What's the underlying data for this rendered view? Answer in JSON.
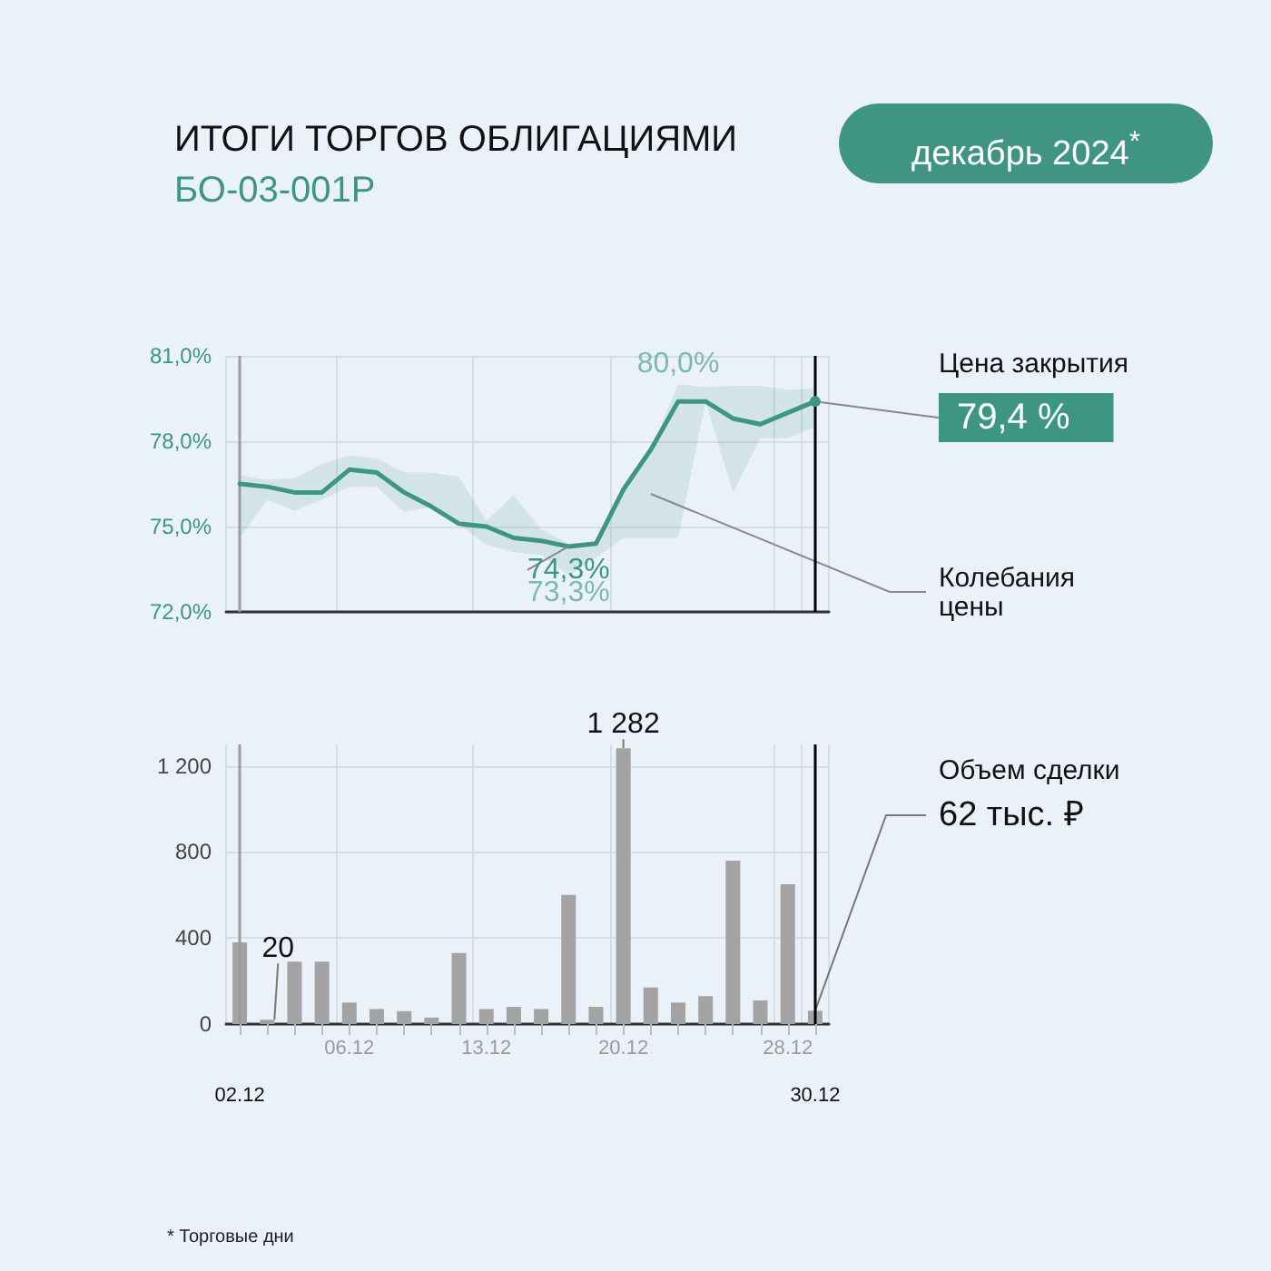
{
  "chart_data": [
    {
      "type": "line",
      "title": "ИТОГИ ТОРГОВ ОБЛИГАЦИЯМИ",
      "subtitle": "БО-03-001Р",
      "categories": [
        "02.12",
        null,
        null,
        null,
        "06.12",
        null,
        null,
        null,
        null,
        "13.12",
        null,
        null,
        null,
        null,
        "20.12",
        null,
        null,
        null,
        null,
        null,
        "28.12",
        "30.12"
      ],
      "ylim": [
        72,
        81
      ],
      "yticks": [
        {
          "value": 72,
          "label": "72,0%"
        },
        {
          "value": 75,
          "label": "75,0%"
        },
        {
          "value": 78,
          "label": "78,0%"
        },
        {
          "value": 81,
          "label": "81,0%"
        }
      ],
      "grid": true,
      "tick_labels": "y",
      "series": [
        {
          "color": "#3d9681",
          "values": [
            76.5,
            76.4,
            76.2,
            76.2,
            77.0,
            76.9,
            76.2,
            75.7,
            75.1,
            75.0,
            74.6,
            74.5,
            74.3,
            74.4,
            76.3,
            77.7,
            79.4,
            79.4,
            78.8,
            78.6,
            79.0,
            79.4
          ],
          "lower": [
            74.6,
            75.95,
            75.55,
            75.95,
            76.4,
            76.4,
            75.5,
            75.7,
            75.1,
            74.35,
            74.1,
            74.0,
            73.3,
            73.9,
            74.6,
            74.6,
            74.6,
            79.4,
            76.2,
            78.1,
            78.1,
            78.5
          ],
          "upper": [
            76.8,
            76.65,
            76.7,
            77.2,
            77.5,
            77.4,
            76.9,
            76.9,
            76.75,
            75.2,
            76.1,
            74.9,
            74.4,
            74.4,
            76.3,
            77.7,
            80.0,
            79.9,
            79.95,
            79.95,
            79.8,
            79.85
          ],
          "value_labels": [
            null,
            null,
            null,
            null,
            null,
            null,
            null,
            null,
            null,
            null,
            null,
            null,
            "74,3%",
            null,
            null,
            null,
            null,
            null,
            null,
            null,
            null,
            "79,4 %"
          ]
        }
      ],
      "ref_lines": [
        {
          "axis": "x",
          "value": "02.12",
          "color": "#9a9a9a"
        },
        {
          "axis": "x",
          "value": "30.12",
          "color": "#000000"
        }
      ],
      "annotations": [
        "декабрь 2024$^{*}$",
        "Цена закрытия",
        "Колебания цены",
        {
          "text": "80,0%",
          "y": 80.0
        },
        {
          "text": "73,3%",
          "y": 73.3
        }
      ]
    },
    {
      "type": "bar",
      "categories": [
        "02.12",
        null,
        null,
        null,
        "06.12",
        null,
        null,
        null,
        null,
        "13.12",
        null,
        null,
        null,
        null,
        "20.12",
        null,
        null,
        null,
        null,
        null,
        "28.12",
        "30.12"
      ],
      "values": [
        380,
        20,
        290,
        290,
        100,
        70,
        60,
        30,
        330,
        70,
        80,
        70,
        600,
        80,
        1282,
        170,
        100,
        130,
        760,
        110,
        650,
        62
      ],
      "color": "#a3a3a3",
      "value_labels": [
        null,
        "20",
        null,
        null,
        null,
        null,
        null,
        null,
        null,
        null,
        null,
        null,
        null,
        null,
        "1 282",
        null,
        null,
        null,
        null,
        null,
        null,
        "62 тыс. ₽"
      ],
      "ylim": [
        0,
        1300
      ],
      "yticks": [
        0,
        400,
        800,
        {
          "value": 1200,
          "label": "1 200"
        }
      ],
      "grid": true,
      "ref_lines": [
        {
          "axis": "x",
          "value": "02.12",
          "color": "#9a9a9a"
        },
        {
          "axis": "x",
          "value": "30.12",
          "color": "#000000"
        }
      ],
      "annotations": [
        {
          "text": "Объем сделки",
          "x": "30.12",
          "y": 62
        },
        "* Торговые дни"
      ]
    }
  ]
}
